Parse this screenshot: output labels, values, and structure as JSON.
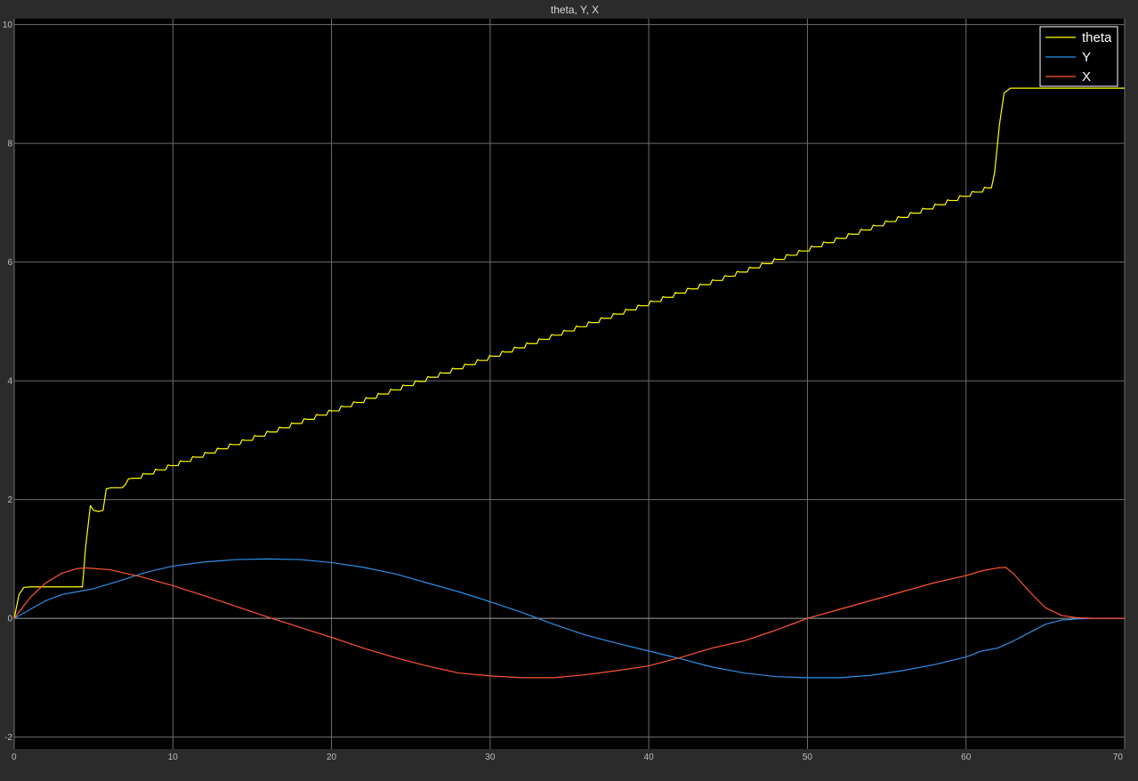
{
  "window": {
    "background": "#2b2b2b",
    "plot_background": "#000000",
    "grid_color": "#6e6e6e",
    "zero_line_color": "#a0a0a0",
    "legend_border": "#ffffff"
  },
  "chart_data": {
    "type": "line",
    "title": "theta, Y, X",
    "xlabel": "",
    "ylabel": "",
    "xlim": [
      0,
      70
    ],
    "ylim": [
      -2.2,
      10.1
    ],
    "xticks": [
      0,
      10,
      20,
      30,
      40,
      50,
      60,
      70
    ],
    "yticks": [
      -2,
      0,
      2,
      4,
      6,
      8,
      10
    ],
    "grid": true,
    "legend_position": "top-right",
    "series": [
      {
        "name": "theta",
        "color": "#ffff00",
        "x": [
          0,
          0.3,
          0.6,
          1,
          4.3,
          4.5,
          4.8,
          5.0,
          5.3,
          5.6,
          5.8,
          6.1,
          6.5,
          6.8,
          7.0,
          7.2,
          7.5,
          67,
          61.6,
          61.8,
          62.1,
          62.4,
          62.8,
          63.2,
          70
        ],
        "y": [
          0,
          0.4,
          0.52,
          0.53,
          0.53,
          1.2,
          1.9,
          1.82,
          1.8,
          1.82,
          2.18,
          2.2,
          2.2,
          2.2,
          2.25,
          2.35,
          2.36,
          7.25,
          7.25,
          7.5,
          8.3,
          8.85,
          8.93,
          8.93,
          8.93
        ],
        "staircase": {
          "start_x": 7.5,
          "start_y": 2.36,
          "end_x": 61.6,
          "end_y": 7.25,
          "step_width": 0.78
        }
      },
      {
        "name": "Y",
        "color": "#2f8fe6",
        "x": [
          0,
          1,
          2,
          3,
          4,
          5,
          6,
          7,
          8,
          9,
          10,
          12,
          14,
          16,
          18,
          20,
          22,
          24,
          26,
          28,
          30,
          32,
          34,
          36,
          38,
          40,
          42,
          44,
          46,
          48,
          50,
          52,
          54,
          56,
          58,
          60,
          61,
          62,
          63,
          64,
          65,
          66,
          67,
          68,
          70
        ],
        "y": [
          0,
          0.15,
          0.3,
          0.4,
          0.45,
          0.5,
          0.58,
          0.66,
          0.75,
          0.82,
          0.88,
          0.95,
          0.99,
          1.0,
          0.99,
          0.94,
          0.86,
          0.75,
          0.6,
          0.45,
          0.28,
          0.1,
          -0.1,
          -0.28,
          -0.42,
          -0.55,
          -0.68,
          -0.82,
          -0.92,
          -0.98,
          -1.0,
          -1.0,
          -0.96,
          -0.88,
          -0.78,
          -0.65,
          -0.55,
          -0.5,
          -0.38,
          -0.24,
          -0.1,
          -0.03,
          -0.01,
          0,
          0
        ]
      },
      {
        "name": "X",
        "color": "#ff5533",
        "x": [
          0,
          1,
          2,
          3,
          4,
          4.5,
          5,
          6,
          7,
          8,
          10,
          12,
          14,
          16,
          18,
          20,
          22,
          24,
          26,
          28,
          30,
          32,
          34,
          36,
          38,
          40,
          42,
          44,
          46,
          48,
          50,
          52,
          54,
          56,
          58,
          60,
          61,
          62,
          62.5,
          63,
          64,
          65,
          66,
          67,
          68,
          70
        ],
        "y": [
          0,
          0.35,
          0.6,
          0.76,
          0.84,
          0.85,
          0.84,
          0.82,
          0.76,
          0.7,
          0.55,
          0.38,
          0.2,
          0.02,
          -0.15,
          -0.32,
          -0.5,
          -0.66,
          -0.8,
          -0.92,
          -0.97,
          -1.0,
          -1.0,
          -0.95,
          -0.88,
          -0.8,
          -0.66,
          -0.5,
          -0.38,
          -0.2,
          0.0,
          0.15,
          0.3,
          0.45,
          0.6,
          0.72,
          0.8,
          0.85,
          0.86,
          0.75,
          0.45,
          0.18,
          0.05,
          0.01,
          0,
          0
        ]
      }
    ]
  }
}
